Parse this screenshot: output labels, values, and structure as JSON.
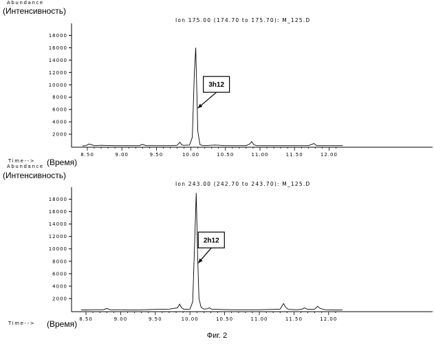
{
  "figure_caption": "Фиг. 2",
  "chart_data": [
    {
      "type": "line",
      "ylabel_en": "Abundance",
      "ylabel_ru": "(Интенсивность)",
      "title": "Ion 175.00 (174.70 to 175.70): M_125.D",
      "xlabel_en": "Time-->",
      "xlabel_ru": "(Время)",
      "x_ticks": [
        "8.50",
        "9.00",
        "9.50",
        "10.00",
        "10.50",
        "11.00",
        "11.50",
        "12.00"
      ],
      "y_ticks": [
        "2000",
        "4000",
        "6000",
        "8000",
        "10000",
        "12000",
        "14000",
        "16000",
        "18000"
      ],
      "xlim": [
        8.43,
        12.2
      ],
      "ylim": [
        0,
        19500
      ],
      "annotation": {
        "label": "3h12",
        "x": 10.08,
        "y": 6000
      },
      "series": [
        {
          "x": [
            8.43,
            8.48,
            8.52,
            8.56,
            8.6,
            8.7,
            8.9,
            9.1,
            9.25,
            9.3,
            9.35,
            9.5,
            9.7,
            9.8,
            9.84,
            9.87,
            9.9,
            9.98,
            10.02,
            10.05,
            10.07,
            10.1,
            10.13,
            10.16,
            10.2,
            10.35,
            10.5,
            10.65,
            10.8,
            10.85,
            10.88,
            10.91,
            10.95,
            11.1,
            11.3,
            11.5,
            11.7,
            11.75,
            11.78,
            11.82,
            11.9,
            12.05,
            12.2
          ],
          "y": [
            100,
            150,
            400,
            300,
            150,
            200,
            150,
            150,
            150,
            350,
            150,
            150,
            150,
            200,
            700,
            250,
            200,
            250,
            1500,
            12000,
            16000,
            2500,
            300,
            200,
            150,
            250,
            150,
            150,
            150,
            400,
            800,
            300,
            150,
            150,
            150,
            150,
            150,
            350,
            500,
            150,
            150,
            150,
            150
          ]
        }
      ]
    },
    {
      "type": "line",
      "ylabel_en": "Abundance",
      "ylabel_ru": "(Интенсивность)",
      "title": "Ion 243.00 (242.70 to 243.70): M_125.D",
      "xlabel_en": "Time-->",
      "xlabel_ru": "(Время)",
      "x_ticks": [
        "8.50",
        "9.00",
        "9.50",
        "10.00",
        "10.50",
        "11.00",
        "11.50",
        "12.00"
      ],
      "y_ticks": [
        "2000",
        "4000",
        "6000",
        "8000",
        "10000",
        "12000",
        "14000",
        "16000",
        "18000"
      ],
      "xlim": [
        8.43,
        12.2
      ],
      "ylim": [
        0,
        19500
      ],
      "annotation": {
        "label": "2h12",
        "x": 10.1,
        "y": 7500
      },
      "series": [
        {
          "x": [
            8.43,
            8.6,
            8.75,
            8.8,
            8.85,
            9.0,
            9.2,
            9.5,
            9.7,
            9.82,
            9.85,
            9.88,
            9.92,
            10.0,
            10.04,
            10.07,
            10.09,
            10.11,
            10.13,
            10.16,
            10.2,
            10.25,
            10.28,
            10.31,
            10.4,
            10.6,
            10.8,
            11.0,
            11.2,
            11.3,
            11.35,
            11.38,
            11.42,
            11.55,
            11.62,
            11.65,
            11.7,
            11.8,
            11.84,
            11.88,
            11.95,
            12.1,
            12.2
          ],
          "y": [
            150,
            200,
            200,
            400,
            200,
            200,
            150,
            250,
            300,
            500,
            1100,
            500,
            250,
            300,
            1500,
            12000,
            19000,
            9000,
            2000,
            600,
            300,
            350,
            500,
            300,
            250,
            200,
            200,
            200,
            250,
            300,
            1200,
            600,
            250,
            200,
            300,
            500,
            250,
            300,
            750,
            400,
            200,
            150,
            150
          ]
        }
      ]
    }
  ]
}
